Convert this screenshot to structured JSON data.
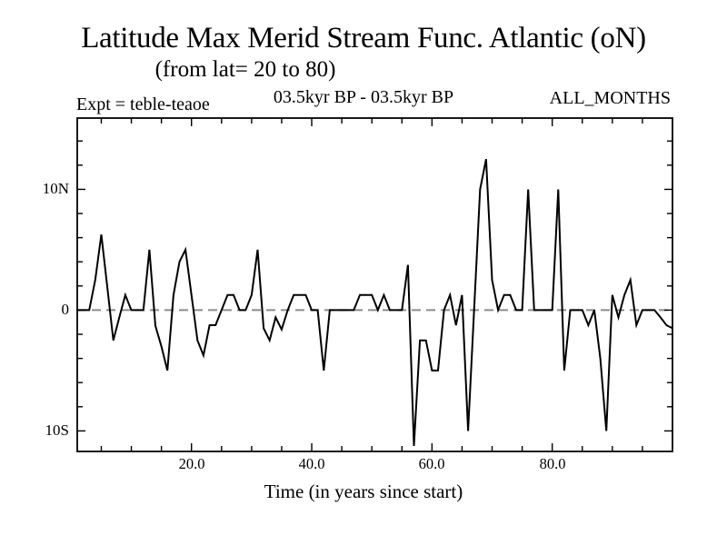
{
  "chart_data": {
    "type": "line",
    "title": "Latitude Max Merid Stream Func. Atlantic (oN)",
    "subtitle": "(from lat= 20 to 80)",
    "annotations": {
      "expt": "Expt = teble-teaoe",
      "period": "03.5kyr BP - 03.5kyr BP",
      "months": "ALL_MONTHS"
    },
    "xlabel": "Time (in years since start)",
    "ylabel": "",
    "xlim": [
      1,
      100
    ],
    "ylim": [
      -11.7,
      15.9
    ],
    "x_major_ticks": [
      20,
      40,
      60,
      80
    ],
    "x_tick_labels": [
      "20.0",
      "40.0",
      "60.0",
      "80.0"
    ],
    "x_minor_tick_step": 5,
    "y_major_ticks": [
      10,
      0,
      -10
    ],
    "y_tick_labels": [
      "10N",
      "0",
      "10S"
    ],
    "y_minor_tick_step": 2,
    "grid": false,
    "legend": false,
    "zero_line_dashed": true,
    "colors": {
      "line": "#000000",
      "zero_line": "#8c8c8c",
      "frame": "#000000",
      "background": "#ffffff",
      "text": "#000000"
    },
    "x": [
      1,
      2,
      3,
      4,
      5,
      6,
      7,
      8,
      9,
      10,
      11,
      12,
      13,
      14,
      15,
      16,
      17,
      18,
      19,
      20,
      21,
      22,
      23,
      24,
      25,
      26,
      27,
      28,
      29,
      30,
      31,
      32,
      33,
      34,
      35,
      36,
      37,
      38,
      39,
      40,
      41,
      42,
      43,
      44,
      45,
      46,
      47,
      48,
      49,
      50,
      51,
      52,
      53,
      54,
      55,
      56,
      57,
      58,
      59,
      60,
      61,
      62,
      63,
      64,
      65,
      66,
      67,
      68,
      69,
      70,
      71,
      72,
      73,
      74,
      75,
      76,
      77,
      78,
      79,
      80,
      81,
      82,
      83,
      84,
      85,
      86,
      87,
      88,
      89,
      90,
      91,
      92,
      93,
      94,
      95,
      96,
      97,
      98,
      99,
      100
    ],
    "values": [
      0,
      0,
      0,
      2.5,
      6.25,
      1.9,
      -2.5,
      -0.6,
      1.25,
      0,
      0,
      0,
      5,
      -1.3,
      -3,
      -5,
      1.25,
      4,
      5,
      1.25,
      -2.5,
      -3.75,
      -1.25,
      -1.25,
      0,
      1.25,
      1.25,
      0,
      0,
      1.25,
      5,
      -1.5,
      -2.5,
      -0.6,
      -1.6,
      0,
      1.25,
      1.25,
      1.25,
      0,
      0,
      -5,
      0,
      0,
      0,
      0,
      0,
      1.25,
      1.25,
      1.25,
      0,
      1.25,
      0,
      0,
      0,
      3.75,
      -11.25,
      -2.5,
      -2.5,
      -5,
      -5,
      0,
      1.25,
      -1.25,
      1.25,
      -10,
      0,
      10,
      12.5,
      2.5,
      0,
      1.25,
      1.25,
      0,
      0,
      10,
      0,
      0,
      0,
      0,
      10,
      -5,
      0,
      0,
      0,
      -1.25,
      0,
      -4,
      -10,
      1.25,
      -0.6,
      1.25,
      2.5,
      -1.25,
      0,
      0,
      0,
      -0.6,
      -1.25,
      -1.5
    ]
  }
}
